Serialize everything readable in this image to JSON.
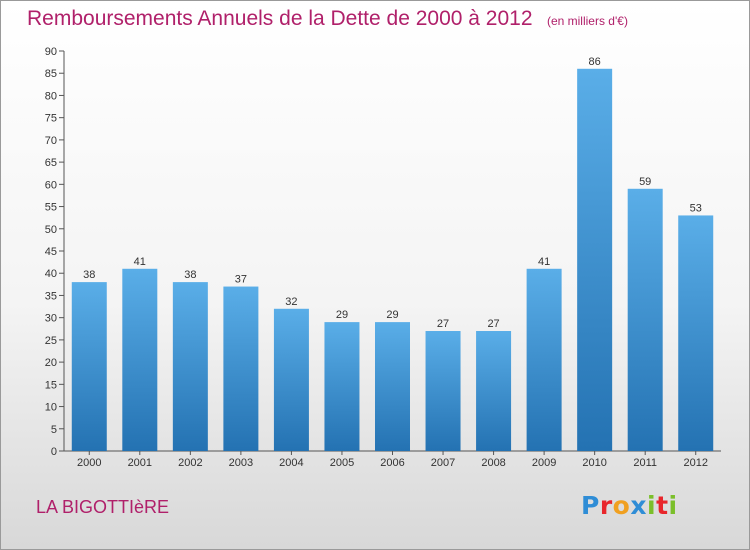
{
  "title": "Remboursements Annuels de la Dette de 2000 à 2012",
  "unit_note": "(en milliers d'€)",
  "commune": "LA BIGOTTIèRE",
  "brand": {
    "letters": [
      {
        "char": "P",
        "color": "#2f8dd6"
      },
      {
        "char": "r",
        "color": "#e8262b"
      },
      {
        "char": "o",
        "color": "#f0a020"
      },
      {
        "char": "x",
        "color": "#2f8dd6"
      },
      {
        "char": "i",
        "color": "#7bbf2a"
      },
      {
        "char": "t",
        "color": "#e8262b"
      },
      {
        "char": "i",
        "color": "#7bbf2a"
      }
    ]
  },
  "colors": {
    "text_accent": "#b0206a",
    "bar_top": "#5aaee8",
    "bar_bottom": "#2472b2"
  },
  "chart_data": {
    "type": "bar",
    "categories": [
      "2000",
      "2001",
      "2002",
      "2003",
      "2004",
      "2005",
      "2006",
      "2007",
      "2008",
      "2009",
      "2010",
      "2011",
      "2012"
    ],
    "values": [
      38,
      41,
      38,
      37,
      32,
      29,
      29,
      27,
      27,
      41,
      86,
      59,
      53
    ],
    "title": "Remboursements Annuels de la Dette de 2000 à 2012",
    "ylim": [
      0,
      90
    ],
    "yticks": [
      0,
      5,
      10,
      15,
      20,
      25,
      30,
      35,
      40,
      45,
      50,
      55,
      60,
      65,
      70,
      75,
      80,
      85,
      90
    ],
    "grid": false,
    "data_labels": true
  }
}
